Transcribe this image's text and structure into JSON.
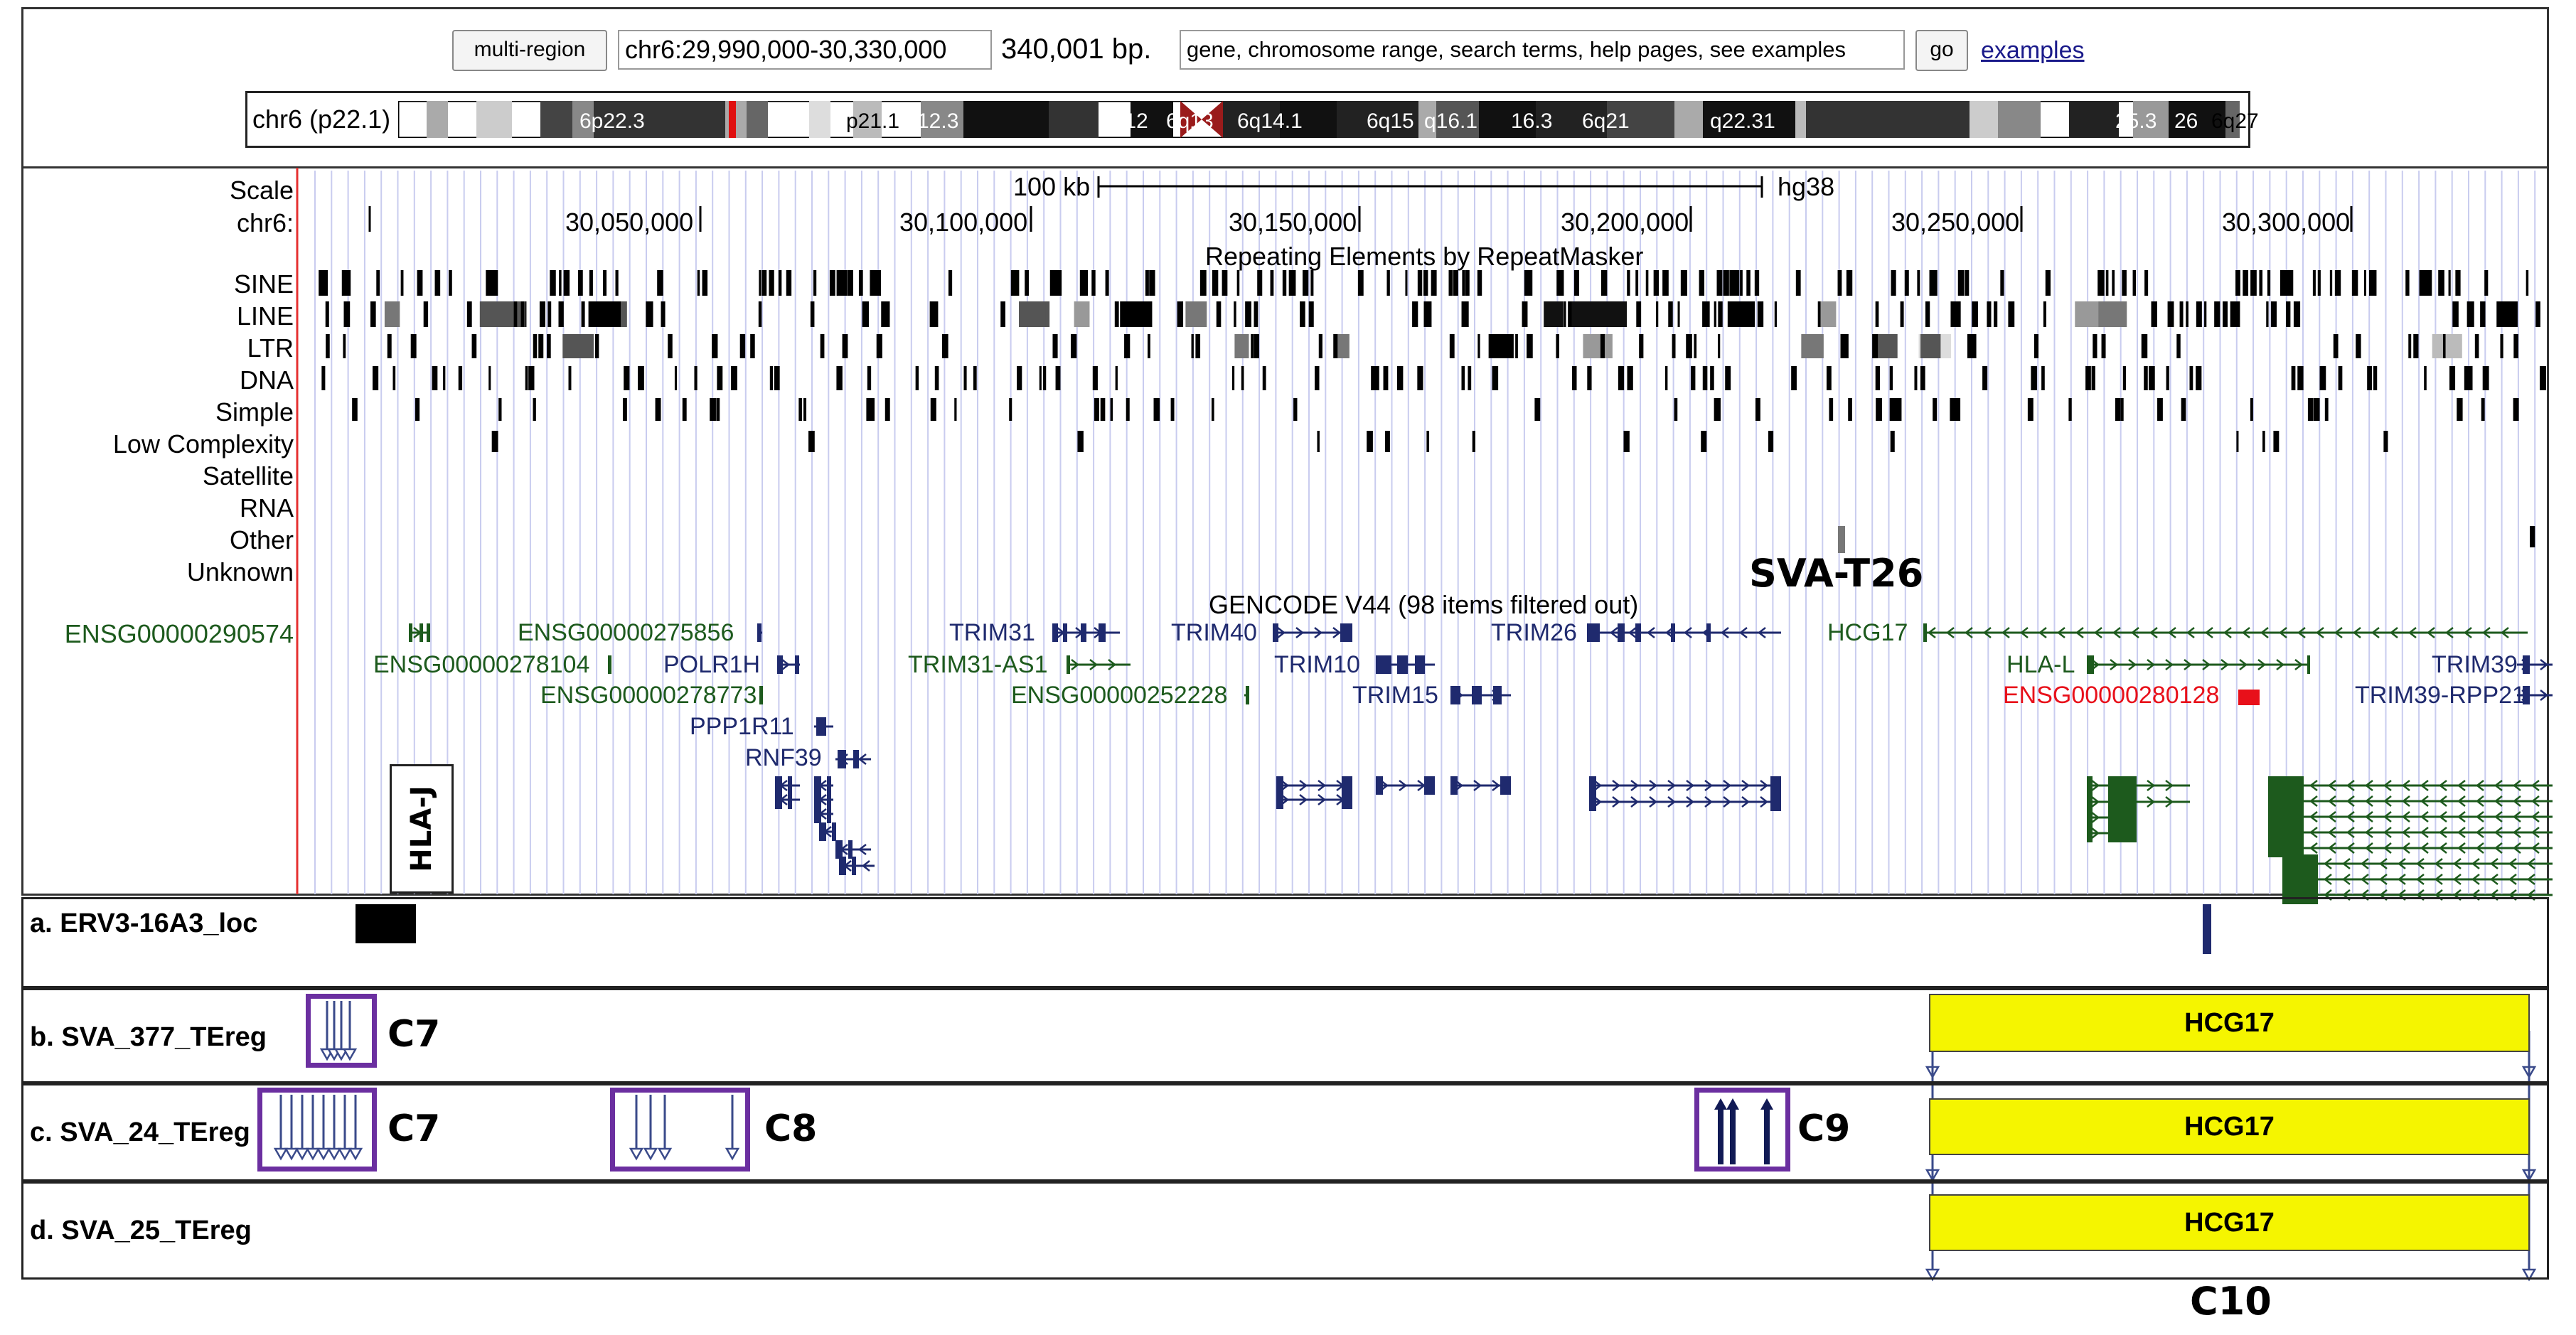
{
  "browser": {
    "multi_region_label": "multi-region",
    "position": "chr6:29,990,000-30,330,000",
    "span_text": "340,001 bp.",
    "search_placeholder": "gene, chromosome range, search terms, help pages, see examples",
    "go_label": "go",
    "examples_link": "examples"
  },
  "ideogram": {
    "chromosome_label": "chr6 (p22.1)",
    "bands": [
      "6p22.3",
      "p21.1",
      "12.3",
      "6q12",
      "6q13",
      "6q14.1",
      "6q15",
      "q16.1",
      "16.3",
      "6q21",
      "q22.31",
      "25.3",
      "26",
      "6q27"
    ]
  },
  "ruler": {
    "scale_label": "Scale",
    "chr_label": "chr6:",
    "scale_bar_text": "100 kb",
    "assembly": "hg38",
    "ticks": [
      "30,050,000",
      "30,100,000",
      "30,150,000",
      "30,200,000",
      "30,250,000",
      "30,300,000"
    ]
  },
  "repeatmasker": {
    "title": "Repeating Elements by RepeatMasker",
    "classes": [
      "SINE",
      "LINE",
      "LTR",
      "DNA",
      "Simple",
      "Low Complexity",
      "Satellite",
      "RNA",
      "Other",
      "Unknown"
    ]
  },
  "annotation_sva_t26": "SVA-T26",
  "gencode": {
    "title": "GENCODE V44 (98 items filtered out)",
    "left_label": "ENSG00000290574",
    "genes": [
      "ENSG00000275856",
      "ENSG00000278104",
      "POLR1H",
      "ENSG00000278773",
      "PPP1R11",
      "RNF39",
      "TRIM31",
      "TRIM31-AS1",
      "ENSG00000252228",
      "TRIM40",
      "TRIM10",
      "TRIM15",
      "TRIM26",
      "HCG17",
      "HLA-L",
      "ENSG00000280128",
      "TRIM39",
      "TRIM39-RPP21"
    ],
    "hla_j_label": "HLA-J"
  },
  "custom_tracks": [
    {
      "label": "a. ERV3-16A3_loc"
    },
    {
      "label": "b. SVA_377_TEreg",
      "clusters": [
        "C7"
      ],
      "region_label": "HCG17"
    },
    {
      "label": "c. SVA_24_TEreg",
      "clusters": [
        "C7",
        "C8",
        "C9"
      ],
      "region_label": "HCG17"
    },
    {
      "label": "d. SVA_25_TEreg",
      "region_label": "HCG17",
      "below_label": "C10"
    }
  ],
  "colors": {
    "nav_gene": "#1f2a6e",
    "green_gene": "#1d5a1d",
    "red_gene": "#e8101a",
    "cluster_box": "#6b2fa0",
    "hcg17_fill": "#f5f500",
    "window_border": "#e53030",
    "gridline": "#c9ccef"
  }
}
